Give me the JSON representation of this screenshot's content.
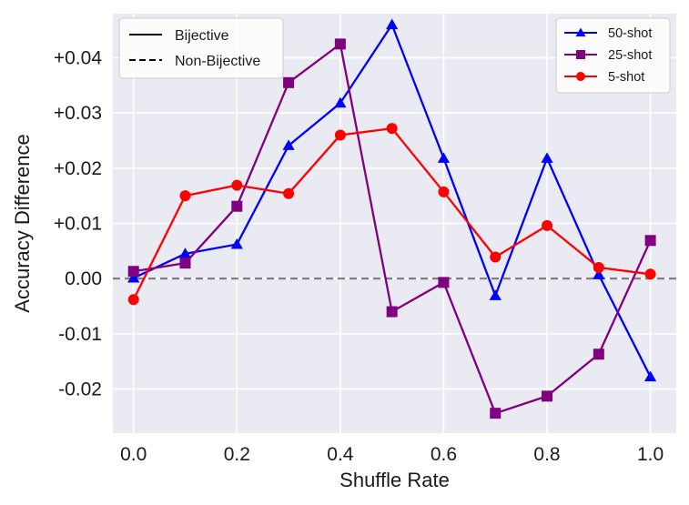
{
  "chart_data": {
    "type": "line",
    "title": "",
    "xlabel": "Shuffle Rate",
    "ylabel": "Accuracy Difference",
    "xlim": [
      -0.04,
      1.05
    ],
    "ylim": [
      -0.028,
      0.048
    ],
    "x_ticks": [
      0.0,
      0.2,
      0.4,
      0.6,
      0.8,
      1.0
    ],
    "x_tick_labels": [
      "0.0",
      "0.2",
      "0.4",
      "0.6",
      "0.8",
      "1.0"
    ],
    "y_ticks": [
      -0.02,
      -0.01,
      0.0,
      0.01,
      0.02,
      0.03,
      0.04
    ],
    "y_tick_labels": [
      "-0.02",
      "-0.01",
      "0.00",
      "+0.01",
      "+0.02",
      "+0.03",
      "+0.04"
    ],
    "grid": true,
    "reference_line": {
      "y": 0.0,
      "style": "dashed",
      "color": "#808080"
    },
    "x": [
      0.0,
      0.1,
      0.2,
      0.3,
      0.4,
      0.5,
      0.6,
      0.7,
      0.8,
      0.9,
      1.0
    ],
    "series": [
      {
        "name": "50-shot",
        "color": "#0000ff",
        "marker": "triangle",
        "values": [
          0.0001,
          0.0045,
          0.0062,
          0.0241,
          0.0318,
          0.046,
          0.0218,
          -0.0031,
          0.0218,
          0.0007,
          -0.0178
        ]
      },
      {
        "name": "25-shot",
        "color": "#800080",
        "marker": "square",
        "values": [
          0.0013,
          0.0028,
          0.0131,
          0.0355,
          0.0425,
          -0.006,
          -0.0007,
          -0.0244,
          -0.0213,
          -0.0137,
          0.0069
        ]
      },
      {
        "name": "5-shot",
        "color": "#ff0000",
        "marker": "circle",
        "values": [
          -0.0038,
          0.015,
          0.0169,
          0.0154,
          0.026,
          0.0272,
          0.0157,
          0.0039,
          0.0096,
          0.002,
          0.0008
        ]
      }
    ],
    "legends": [
      {
        "position": "top-left",
        "entries": [
          {
            "label": "Bijective",
            "style": "solid"
          },
          {
            "label": "Non-Bijective",
            "style": "dashed"
          }
        ]
      },
      {
        "position": "top-right",
        "entries": [
          {
            "label": "50-shot",
            "series": 0
          },
          {
            "label": "25-shot",
            "series": 1
          },
          {
            "label": "5-shot",
            "series": 2
          }
        ]
      }
    ],
    "colors": {
      "background": "#eaeaf2",
      "grid": "#ffffff",
      "text": "#1a1a1a"
    }
  }
}
